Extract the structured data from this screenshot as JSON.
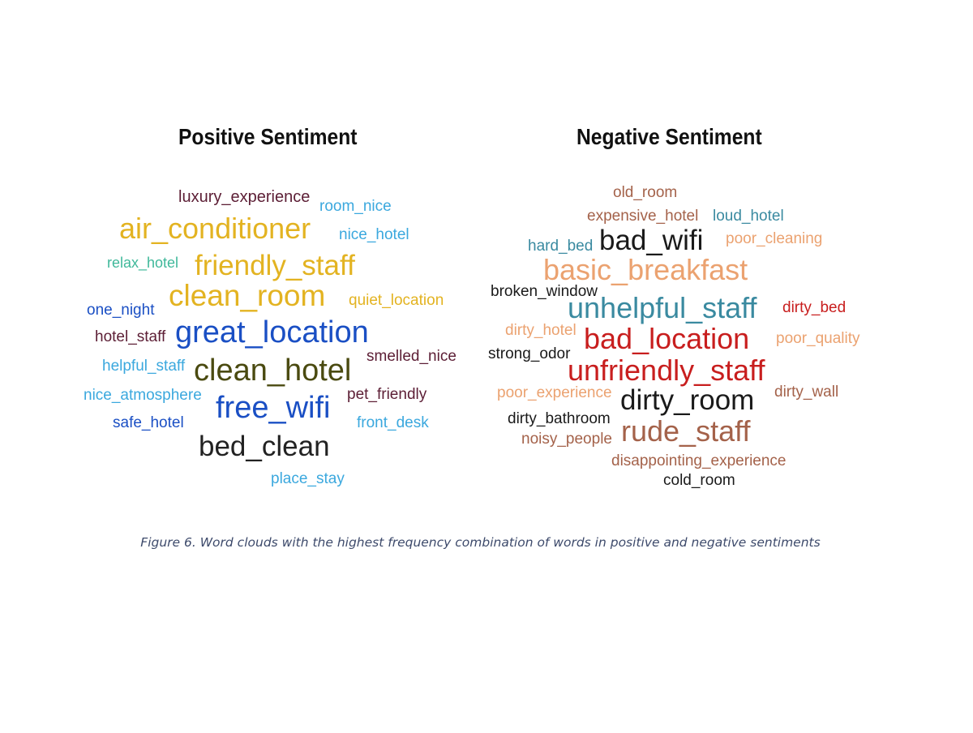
{
  "titles": {
    "positive": "Positive Sentiment",
    "negative": "Negative Sentiment"
  },
  "caption": "Figure 6. Word clouds with the highest frequency combination of words in positive and negative sentiments",
  "positive_words": [
    {
      "text": "luxury_experience",
      "color": "#5c1e35"
    },
    {
      "text": "room_nice",
      "color": "#3ba8de"
    },
    {
      "text": "air_conditioner",
      "color": "#e3b321"
    },
    {
      "text": "nice_hotel",
      "color": "#3ba8de"
    },
    {
      "text": "relax_hotel",
      "color": "#3fb89a"
    },
    {
      "text": "friendly_staff",
      "color": "#e3b321"
    },
    {
      "text": "clean_room",
      "color": "#e3b321"
    },
    {
      "text": "quiet_location",
      "color": "#e3b321"
    },
    {
      "text": "one_night",
      "color": "#1a4fc4"
    },
    {
      "text": "hotel_staff",
      "color": "#5c1e35"
    },
    {
      "text": "great_location",
      "color": "#1a4fc4"
    },
    {
      "text": "smelled_nice",
      "color": "#5c1e35"
    },
    {
      "text": "helpful_staff",
      "color": "#3ba8de"
    },
    {
      "text": "clean_hotel",
      "color": "#4a4a10"
    },
    {
      "text": "nice_atmosphere",
      "color": "#3ba8de"
    },
    {
      "text": "pet_friendly",
      "color": "#5c1e35"
    },
    {
      "text": "free_wifi",
      "color": "#1a4fc4"
    },
    {
      "text": "safe_hotel",
      "color": "#1a4fc4"
    },
    {
      "text": "front_desk",
      "color": "#3ba8de"
    },
    {
      "text": "bed_clean",
      "color": "#222222"
    },
    {
      "text": "place_stay",
      "color": "#3ba8de"
    }
  ],
  "negative_words": [
    {
      "text": "old_room",
      "color": "#a4624a"
    },
    {
      "text": "expensive_hotel",
      "color": "#a4624a"
    },
    {
      "text": "loud_hotel",
      "color": "#3a8aa0"
    },
    {
      "text": "hard_bed",
      "color": "#3a8aa0"
    },
    {
      "text": "bad_wifi",
      "color": "#1a1a1a"
    },
    {
      "text": "poor_cleaning",
      "color": "#eba270"
    },
    {
      "text": "basic_breakfast",
      "color": "#eba270"
    },
    {
      "text": "broken_window",
      "color": "#1a1a1a"
    },
    {
      "text": "unhelpful_staff",
      "color": "#3a8aa0"
    },
    {
      "text": "dirty_bed",
      "color": "#c81e1e"
    },
    {
      "text": "dirty_hotel",
      "color": "#eba270"
    },
    {
      "text": "bad_location",
      "color": "#c81e1e"
    },
    {
      "text": "poor_quality",
      "color": "#eba270"
    },
    {
      "text": "strong_odor",
      "color": "#1a1a1a"
    },
    {
      "text": "unfriendly_staff",
      "color": "#c81e1e"
    },
    {
      "text": "poor_experience",
      "color": "#eba270"
    },
    {
      "text": "dirty_room",
      "color": "#1a1a1a"
    },
    {
      "text": "dirty_wall",
      "color": "#a4624a"
    },
    {
      "text": "dirty_bathroom",
      "color": "#1a1a1a"
    },
    {
      "text": "noisy_people",
      "color": "#a4624a"
    },
    {
      "text": "rude_staff",
      "color": "#a4624a"
    },
    {
      "text": "disappointing_experience",
      "color": "#a4624a"
    },
    {
      "text": "cold_room",
      "color": "#1a1a1a"
    }
  ]
}
